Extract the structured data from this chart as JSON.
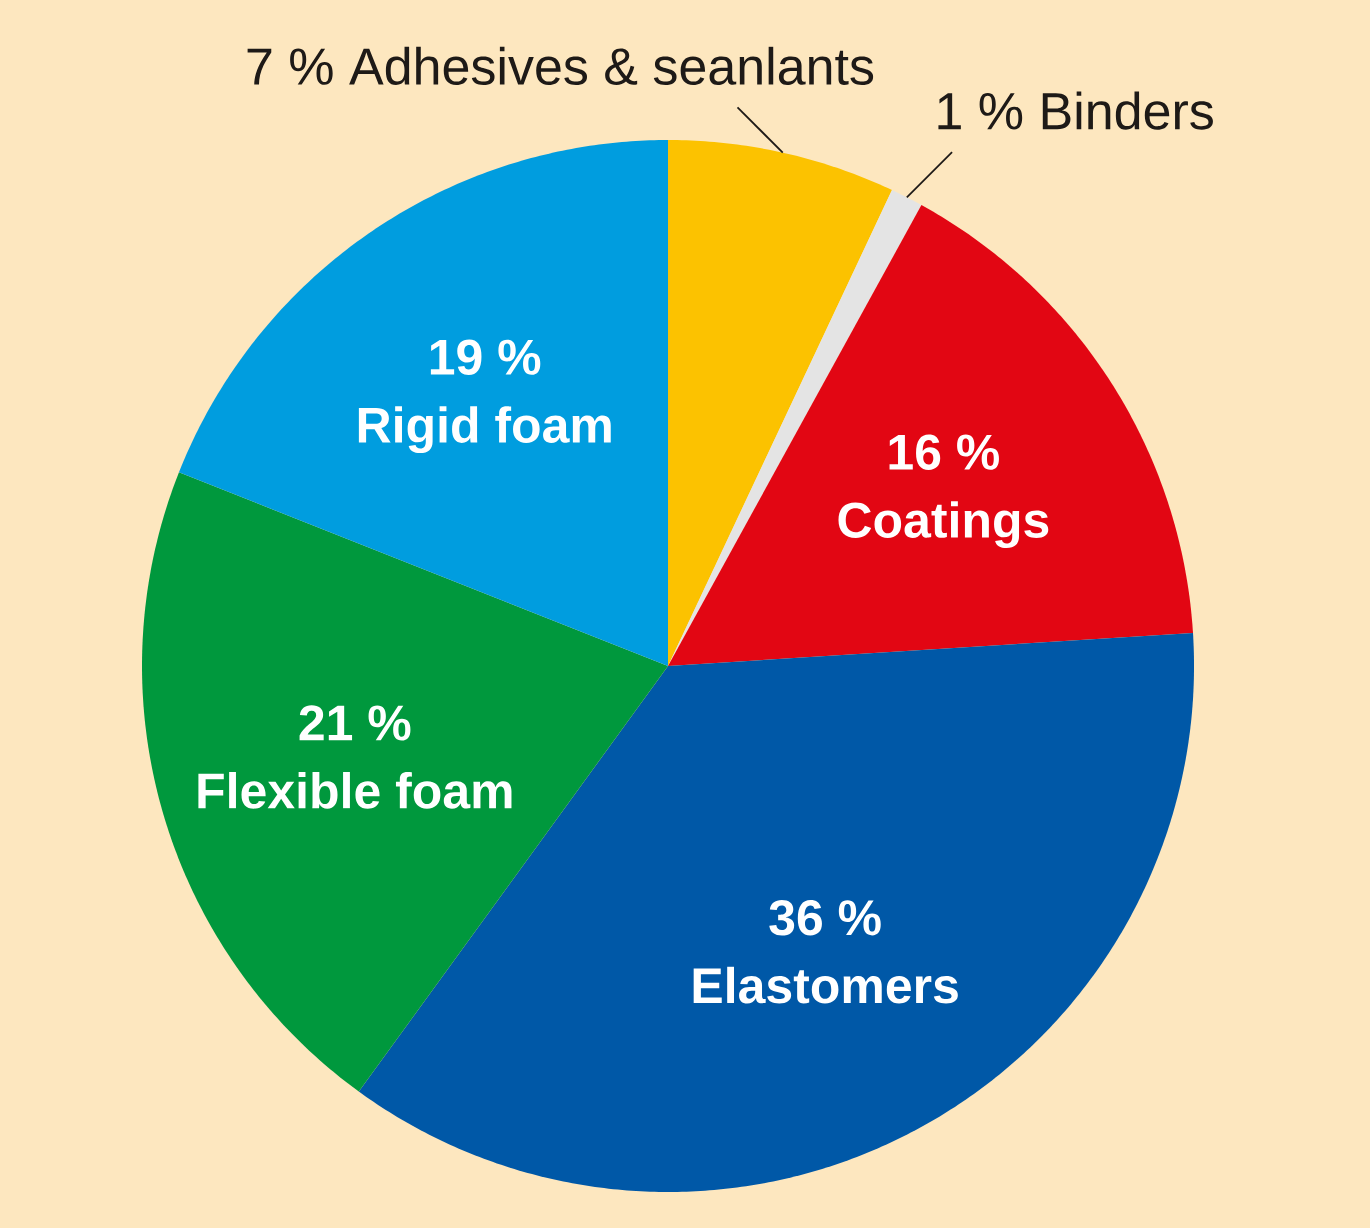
{
  "chart_data": {
    "type": "pie",
    "categories": [
      "Adhesives & seanlants",
      "Binders",
      "Coatings",
      "Elastomers",
      "Flexible foam",
      "Rigid foam"
    ],
    "values": [
      7,
      1,
      16,
      36,
      21,
      19
    ],
    "colors": [
      "#fcc200",
      "#e4e4e4",
      "#e20613",
      "#0058a7",
      "#00983d",
      "#009ddf"
    ],
    "value_labels": [
      "7 %",
      "1 %",
      "16 %",
      "36 %",
      "21 %",
      "19 %"
    ]
  }
}
